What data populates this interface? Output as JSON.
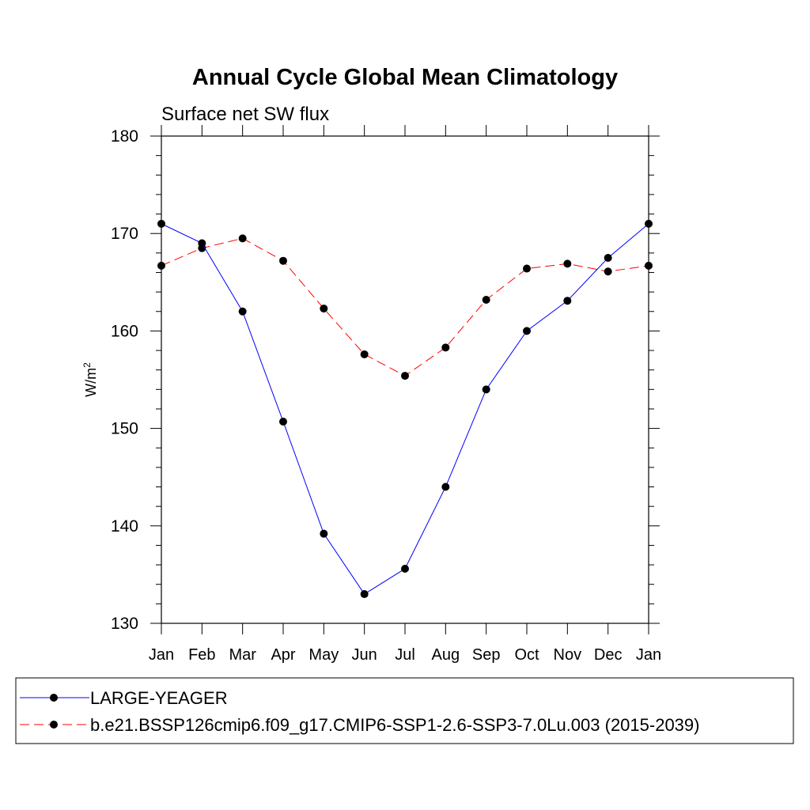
{
  "chart_data": {
    "type": "line",
    "title": "Annual Cycle Global Mean Climatology",
    "subtitle": "Surface net SW flux",
    "xlabel": "",
    "ylabel": "W/m",
    "ylabel_superscript": "2",
    "categories": [
      "Jan",
      "Feb",
      "Mar",
      "Apr",
      "May",
      "Jun",
      "Jul",
      "Aug",
      "Sep",
      "Oct",
      "Nov",
      "Dec",
      "Jan"
    ],
    "ylim": [
      130,
      180
    ],
    "yticks": [
      130,
      140,
      150,
      160,
      170,
      180
    ],
    "grid": false,
    "legend_placement": "bottom",
    "series": [
      {
        "name": "LARGE-YEAGER",
        "color": "#0000ff",
        "dash": "solid",
        "marker": "filled-circle",
        "values": [
          171.0,
          169.0,
          162.0,
          150.7,
          139.2,
          133.0,
          135.6,
          144.0,
          154.0,
          160.0,
          163.1,
          167.5,
          171.0
        ]
      },
      {
        "name": "b.e21.BSSP126cmip6.f09_g17.CMIP6-SSP1-2.6-SSP3-7.0Lu.003 (2015-2039)",
        "color": "#ff0000",
        "dash": "dashed",
        "marker": "filled-circle",
        "values": [
          166.7,
          168.5,
          169.5,
          167.2,
          162.3,
          157.6,
          155.4,
          158.3,
          163.2,
          166.4,
          166.9,
          166.1,
          166.7
        ]
      }
    ]
  }
}
